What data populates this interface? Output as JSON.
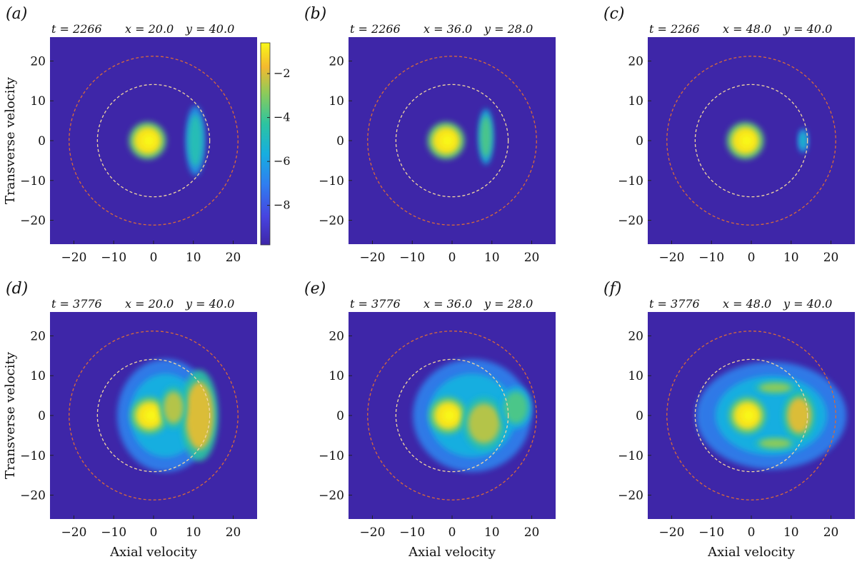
{
  "chart_data": {
    "type": "heatmap",
    "shared": {
      "xlabel": "Axial velocity",
      "ylabel": "Transverse velocity",
      "xlim": [
        -26,
        26
      ],
      "ylim": [
        -26,
        26
      ],
      "xticks": [
        -20,
        -10,
        0,
        10,
        20
      ],
      "yticks": [
        -20,
        -10,
        0,
        10,
        20
      ],
      "xtick_labels": [
        "−20",
        "−10",
        "0",
        "10",
        "20"
      ],
      "ytick_labels": [
        "−20",
        "−10",
        "0",
        "10",
        "20"
      ],
      "circles": [
        {
          "radius": 14.1,
          "color": "#f2d6a0"
        },
        {
          "radius": 21.2,
          "color": "#d86a3a"
        }
      ],
      "colorbar": {
        "range": [
          -9.8,
          -0.6
        ],
        "ticks": [
          -2,
          -4,
          -6,
          -8
        ],
        "tick_labels": [
          "−2",
          "−4",
          "−6",
          "−8"
        ]
      }
    },
    "panels": [
      {
        "label": "(a)",
        "t": "t = 2266",
        "x": "x = 20.0",
        "y": "y = 40.0",
        "blobs": [
          {
            "cx": -1.5,
            "cy": 0,
            "rx": 3.5,
            "ry": 3.5,
            "level": 0.96
          },
          {
            "cx": 10.5,
            "cy": 0,
            "rx": 1.8,
            "ry": 6.5,
            "level": 0.55
          }
        ]
      },
      {
        "label": "(b)",
        "t": "t = 2266",
        "x": "x = 36.0",
        "y": "y = 28.0",
        "blobs": [
          {
            "cx": -1.5,
            "cy": 0,
            "rx": 3.5,
            "ry": 3.5,
            "level": 0.96
          },
          {
            "cx": 8.5,
            "cy": 1,
            "rx": 1.4,
            "ry": 5.2,
            "level": 0.65
          }
        ]
      },
      {
        "label": "(c)",
        "t": "t = 2266",
        "x": "x = 48.0",
        "y": "y = 40.0",
        "blobs": [
          {
            "cx": -1.5,
            "cy": 0,
            "rx": 3.5,
            "ry": 3.5,
            "level": 0.96
          },
          {
            "cx": 13,
            "cy": 0,
            "rx": 0.9,
            "ry": 2.3,
            "level": 0.5
          }
        ]
      },
      {
        "label": "(d)",
        "t": "t = 3776",
        "x": "x = 20.0",
        "y": "y = 40.0",
        "blobs": [
          {
            "cx": 3,
            "cy": 0,
            "rx": 9,
            "ry": 10.5,
            "level": 0.45
          },
          {
            "cx": -1,
            "cy": 0,
            "rx": 3.5,
            "ry": 3.5,
            "level": 0.96
          },
          {
            "cx": 11.5,
            "cy": 0,
            "rx": 3.5,
            "ry": 8.5,
            "level": 0.85
          },
          {
            "cx": 5,
            "cy": 2,
            "rx": 2.5,
            "ry": 4,
            "level": 0.8
          }
        ]
      },
      {
        "label": "(e)",
        "t": "t = 3776",
        "x": "x = 36.0",
        "y": "y = 28.0",
        "blobs": [
          {
            "cx": 5,
            "cy": 0,
            "rx": 11,
            "ry": 10.5,
            "level": 0.45
          },
          {
            "cx": -1,
            "cy": 0,
            "rx": 3.5,
            "ry": 3.5,
            "level": 0.96
          },
          {
            "cx": 8,
            "cy": -2,
            "rx": 4,
            "ry": 5,
            "level": 0.8
          },
          {
            "cx": 16,
            "cy": 2,
            "rx": 3,
            "ry": 4,
            "level": 0.65
          }
        ]
      },
      {
        "label": "(f)",
        "t": "t = 3776",
        "x": "x = 48.0",
        "y": "y = 40.0",
        "blobs": [
          {
            "cx": 5,
            "cy": 0,
            "rx": 14,
            "ry": 10,
            "level": 0.45
          },
          {
            "cx": -1,
            "cy": 0,
            "rx": 3.5,
            "ry": 3.5,
            "level": 0.96
          },
          {
            "cx": 12,
            "cy": 0,
            "rx": 3,
            "ry": 4.5,
            "level": 0.85
          },
          {
            "cx": 6,
            "cy": 7,
            "rx": 4,
            "ry": 1.2,
            "level": 0.75
          },
          {
            "cx": 6,
            "cy": -7,
            "rx": 4,
            "ry": 1.2,
            "level": 0.75
          }
        ]
      }
    ]
  }
}
